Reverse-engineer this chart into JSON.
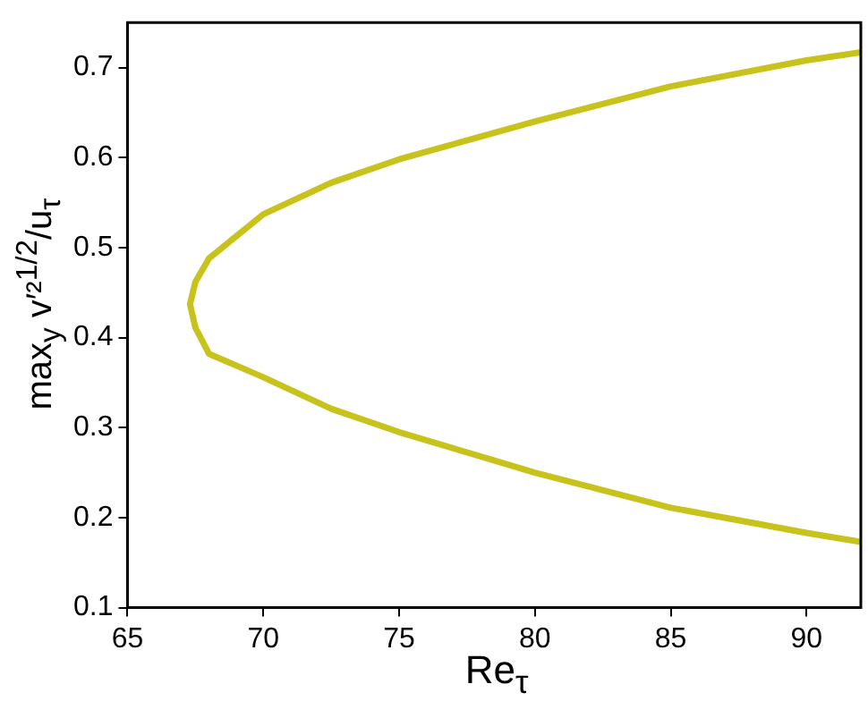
{
  "chart_data": {
    "type": "line",
    "xlabel": "Re$_{τ}$",
    "ylabel": "max$_{y}$ v′²$^{1/2}$/u$_{τ}$",
    "series": [
      {
        "color": "#c8c31c",
        "x": [
          92,
          90,
          85,
          80,
          75,
          72.5,
          70,
          68,
          67.5,
          67.3,
          67.5,
          68,
          70,
          72.5,
          75,
          80,
          85,
          90,
          92
        ],
        "values": [
          0.717,
          0.708,
          0.679,
          0.64,
          0.598,
          0.572,
          0.537,
          0.488,
          0.462,
          0.437,
          0.411,
          0.382,
          0.356,
          0.321,
          0.295,
          0.25,
          0.211,
          0.183,
          0.173
        ]
      }
    ],
    "xlim": [
      65,
      92
    ],
    "xticks": [
      65,
      70,
      75,
      80,
      85,
      90
    ],
    "ylim": [
      0.1,
      0.75
    ],
    "yticks": [
      0.1,
      0.2,
      0.3,
      0.4,
      0.5,
      0.6,
      0.7
    ],
    "grid": false,
    "legend": false
  }
}
